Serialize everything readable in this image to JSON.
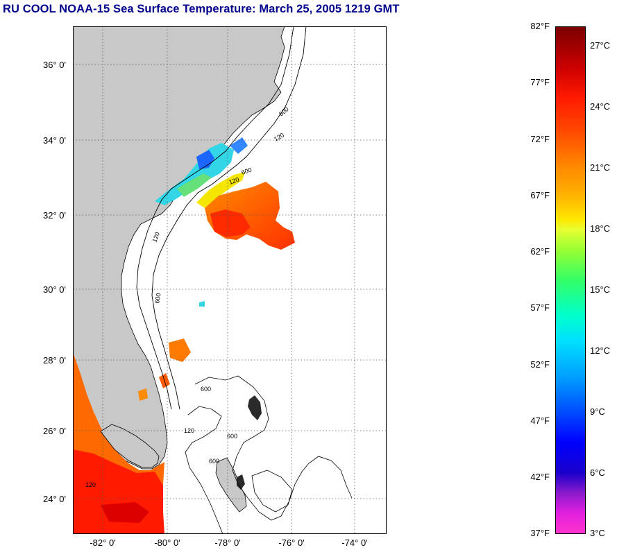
{
  "title": "RU COOL  NOAA-15  Sea Surface Temperature:  March 25, 2005 1219 GMT",
  "map": {
    "lat_labels": [
      "36° 0'",
      "34° 0'",
      "32° 0'",
      "30° 0'",
      "28° 0'",
      "26° 0'",
      "24° 0'"
    ],
    "lon_labels": [
      "-82° 0'",
      "-80° 0'",
      "-78° 0'",
      "-76° 0'",
      "-74° 0'"
    ],
    "bathymetry_labels": [
      "120",
      "600",
      "120",
      "600",
      "120",
      "600",
      "600",
      "120",
      "600",
      "120",
      "600"
    ],
    "colors": {
      "land": "#c8c8c8",
      "ocean": "#ffffff",
      "grid": "#555555",
      "frame": "#000000"
    }
  },
  "colorbar": {
    "fahrenheit_labels": [
      "82°F",
      "77°F",
      "72°F",
      "67°F",
      "62°F",
      "57°F",
      "52°F",
      "47°F",
      "42°F",
      "37°F"
    ],
    "celsius_labels": [
      "27°C",
      "24°C",
      "21°C",
      "18°C",
      "15°C",
      "12°C",
      "9°C",
      "6°C",
      "3°C"
    ],
    "range_f": [
      37,
      82
    ],
    "range_c": [
      3,
      28
    ]
  }
}
